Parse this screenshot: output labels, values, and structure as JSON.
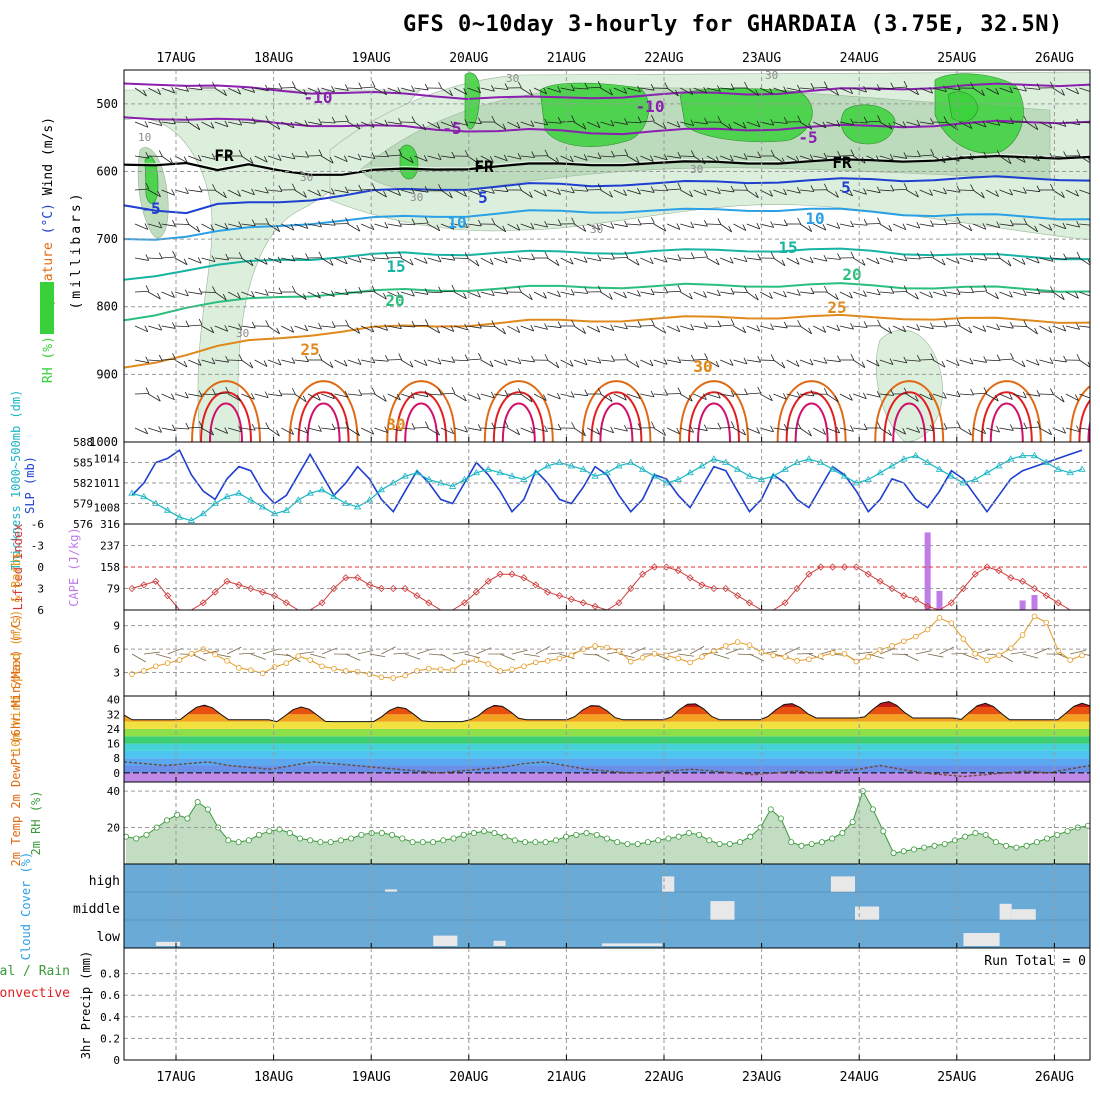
{
  "title": "GFS 0~10day 3-hourly for GHARDAIA (3.75E, 32.5N)",
  "dates": [
    "17AUG",
    "18AUG",
    "19AUG",
    "20AUG",
    "21AUG",
    "22AUG",
    "23AUG",
    "24AUG",
    "25AUG",
    "26AUG"
  ],
  "colors": {
    "purple": "#8a1fb0",
    "blue_dark": "#1e3fd0",
    "blue_mid": "#2aa0e6",
    "teal": "#17b3a3",
    "green_sea": "#2bbf7e",
    "orange": "#e08a1e",
    "orange_dark": "#e06a14",
    "red": "#e02020",
    "magenta": "#d0106a",
    "rh_light": "#dcefdc",
    "rh_mid": "#b8d8b8",
    "rh_green": "#39d13a",
    "cyan": "#1ab6c4",
    "cloud_bg": "#6aaad6",
    "cloud_fill": "#e8e8e8",
    "wind_orange": "#e69a20",
    "rh2m": "#3a9a3a",
    "cape": "#bf7be8",
    "lifted": "#d03a3a",
    "barb": "#7a6a4a"
  },
  "chart_data": [
    {
      "panel": "upper-air",
      "type": "contour",
      "ylabel_parts": [
        "Wind (m/s)",
        "Temperature (°C)",
        "RH (%)"
      ],
      "ylabel_units": "(millibars)",
      "pressure_ticks": [
        "500",
        "600",
        "700",
        "800",
        "900",
        "1000"
      ],
      "ylim": [
        450,
        1000
      ],
      "isotherm_labels": [
        "-10",
        "-10",
        "-5",
        "-5",
        "FR",
        "FR",
        "FR",
        "-5",
        "5",
        "5",
        "10",
        "10",
        "15",
        "15",
        "20",
        "20",
        "25",
        "25",
        "30",
        "30",
        "30"
      ],
      "rh_labels": [
        "10",
        "30",
        "30",
        "30",
        "30",
        "30",
        "30",
        "30"
      ],
      "isotherms": [
        {
          "value": -10,
          "p": [
            470,
            469,
            472,
            475,
            478,
            480,
            482,
            483,
            485,
            487,
            488,
            490,
            490,
            492,
            492,
            490,
            488,
            487,
            486,
            485,
            484,
            483,
            482,
            480,
            478,
            476,
            475,
            474,
            473,
            472,
            471,
            470
          ]
        },
        {
          "value": -5,
          "p": [
            520,
            520,
            522,
            524,
            526,
            528,
            530,
            532,
            534,
            535,
            537,
            538,
            540,
            540,
            541,
            542,
            542,
            541,
            540,
            538,
            537,
            536,
            535,
            534,
            533,
            532,
            531,
            530,
            528,
            527,
            526,
            525
          ]
        },
        {
          "value": 0,
          "p": [
            590,
            588,
            586,
            600,
            592,
            598,
            602,
            604,
            600,
            598,
            596,
            594,
            592,
            591,
            590,
            589,
            588,
            588,
            588,
            587,
            586,
            586,
            586,
            585,
            584,
            583,
            582,
            581,
            580,
            579,
            578,
            577
          ]
        },
        {
          "value": 5,
          "p": [
            650,
            655,
            660,
            650,
            648,
            645,
            640,
            635,
            630,
            628,
            626,
            624,
            622,
            620,
            620,
            620,
            618,
            618,
            617,
            616,
            615,
            614,
            614,
            613,
            612,
            612,
            611,
            611,
            610,
            610,
            610,
            612
          ]
        },
        {
          "value": 10,
          "p": [
            700,
            698,
            695,
            690,
            685,
            680,
            675,
            672,
            670,
            668,
            666,
            664,
            662,
            660,
            660,
            659,
            658,
            658,
            658,
            657,
            656,
            656,
            656,
            658,
            660,
            662,
            664,
            665,
            666,
            667,
            668,
            669
          ]
        },
        {
          "value": 15,
          "p": [
            760,
            752,
            745,
            740,
            735,
            730,
            728,
            726,
            724,
            722,
            722,
            721,
            720,
            720,
            720,
            719,
            719,
            718,
            718,
            717,
            716,
            716,
            716,
            717,
            718,
            720,
            722,
            724,
            725,
            726,
            727,
            728
          ]
        },
        {
          "value": 20,
          "p": [
            820,
            810,
            800,
            795,
            790,
            785,
            782,
            780,
            778,
            776,
            775,
            774,
            773,
            772,
            771,
            770,
            770,
            770,
            769,
            769,
            768,
            768,
            768,
            768,
            769,
            770,
            771,
            772,
            773,
            774,
            775,
            776
          ]
        },
        {
          "value": 25,
          "p": [
            890,
            880,
            870,
            860,
            852,
            846,
            840,
            836,
            832,
            830,
            828,
            826,
            824,
            822,
            821,
            820,
            819,
            818,
            817,
            816,
            815,
            815,
            815,
            815,
            816,
            816,
            817,
            818,
            819,
            820,
            821,
            822
          ]
        }
      ]
    },
    {
      "panel": "sea-level-pressure",
      "type": "line",
      "ylabel_left": "Thickness 1000~500mb (dm)",
      "ylabel_right": "SLP (mb)",
      "left_ticks": [
        "588",
        "585",
        "582",
        "579",
        "576"
      ],
      "right_ticks": [
        "1014",
        "1011",
        "1008"
      ],
      "series": [
        {
          "name": "SLP (mb)",
          "color": "blue_dark",
          "values": [
            1009.5,
            1011,
            1013.5,
            1014,
            1015,
            1012,
            1010,
            1009,
            1011.5,
            1013,
            1012.5,
            1010,
            1008.5,
            1009.5,
            1012,
            1014.5,
            1012,
            1009.5,
            1011,
            1013,
            1011.5,
            1009,
            1007.5,
            1010,
            1012.5,
            1011,
            1009,
            1008.5,
            1011,
            1013.5,
            1012,
            1010,
            1007.5,
            1009,
            1012.5,
            1011,
            1009,
            1008.5,
            1010.5,
            1013,
            1012,
            1009.5,
            1007.5,
            1009,
            1012,
            1011.5,
            1009.5,
            1008,
            1010.5,
            1013,
            1012.5,
            1010,
            1007.5,
            1009,
            1012,
            1011,
            1009,
            1008,
            1010.5,
            1013,
            1012,
            1010,
            1007.5,
            1009,
            1011.5,
            1011,
            1009,
            1008,
            1010,
            1012.5,
            1011.5,
            1009.5,
            1007.5,
            1009.5,
            1011.5,
            1012.5,
            1013,
            1013.5,
            1014,
            1014.5,
            1015
          ]
        },
        {
          "name": "Thickness (dm)",
          "color": "cyan",
          "values": [
            580.5,
            580,
            579,
            578,
            577,
            576.5,
            577.5,
            579,
            580,
            580.5,
            579.5,
            578.5,
            577.5,
            578,
            579.5,
            580.5,
            581,
            580,
            579,
            578.5,
            579.5,
            581,
            582,
            583,
            583.5,
            582.5,
            582,
            581.5,
            582.5,
            583.5,
            584,
            583.5,
            583,
            582.5,
            583.5,
            584.5,
            585,
            584.5,
            584,
            583,
            583.5,
            584.5,
            585,
            584,
            583,
            582,
            582.5,
            583.5,
            584.5,
            585.5,
            585,
            584,
            583,
            582.5,
            583,
            584,
            585,
            585.5,
            585,
            584,
            583,
            582,
            582.5,
            583.5,
            584.5,
            585.5,
            586,
            585,
            584,
            583,
            582,
            582.5,
            583.5,
            584.5,
            585.5,
            586,
            586,
            585,
            584,
            583.5,
            584
          ]
        }
      ]
    },
    {
      "panel": "stability",
      "type": "line+bar",
      "ylabel_left": "Lifted Index",
      "ylabel_right": "CAPE (J/kg)",
      "left_ticks": [
        "-6",
        "-3",
        "0",
        "3",
        "6"
      ],
      "right_ticks": [
        "316",
        "237",
        "158",
        "79"
      ],
      "lifted_index": [
        3,
        2.5,
        2,
        4,
        6,
        6,
        5,
        3.5,
        2,
        2.5,
        3,
        3.5,
        4,
        5,
        6,
        6,
        5,
        3,
        1.5,
        1.5,
        2.5,
        3,
        3,
        3,
        4,
        5,
        6,
        6,
        5,
        3.5,
        2,
        1,
        1,
        1.5,
        2.5,
        3.5,
        4,
        4.5,
        5,
        5.5,
        6,
        5,
        3,
        1,
        0,
        0,
        0.5,
        1.5,
        2.5,
        3,
        3,
        4,
        5,
        6,
        6,
        5,
        3,
        1,
        0,
        0,
        0,
        0,
        1,
        2,
        3,
        4,
        4.5,
        5.5,
        6,
        5,
        3,
        1,
        0,
        0.5,
        1.5,
        2,
        3,
        4,
        5,
        6,
        6
      ],
      "cape": [
        0,
        0,
        0,
        0,
        0,
        0,
        0,
        0,
        0,
        0,
        0,
        0,
        0,
        0,
        0,
        0,
        0,
        0,
        0,
        0,
        0,
        0,
        0,
        0,
        0,
        0,
        0,
        0,
        0,
        0,
        0,
        0,
        0,
        0,
        0,
        0,
        0,
        0,
        0,
        0,
        0,
        0,
        0,
        0,
        0,
        0,
        0,
        0,
        0,
        0,
        0,
        0,
        0,
        0,
        0,
        0,
        0,
        0,
        0,
        0,
        0,
        0,
        0,
        0,
        0,
        0,
        0,
        285,
        70,
        0,
        0,
        0,
        0,
        0,
        0,
        35,
        55,
        0,
        0,
        0,
        0
      ]
    },
    {
      "panel": "surface-wind",
      "type": "line",
      "ylabel": "10m Wind Speed (m/s) & Barbs",
      "ticks": [
        "9",
        "6",
        "3"
      ],
      "ylim": [
        0,
        11
      ],
      "values": [
        2.8,
        3.2,
        3.8,
        4.2,
        4.6,
        5.4,
        6.0,
        5.3,
        4.5,
        3.6,
        3.3,
        2.9,
        3.7,
        4.2,
        5.1,
        4.6,
        3.8,
        3.5,
        3.2,
        3.1,
        2.8,
        2.4,
        2.3,
        2.6,
        3.2,
        3.5,
        3.4,
        3.3,
        4.3,
        4.6,
        4.1,
        3.2,
        3.4,
        3.8,
        4.3,
        4.5,
        4.8,
        5.2,
        6.0,
        6.4,
        6.2,
        5.8,
        4.4,
        4.9,
        5.4,
        5.2,
        4.8,
        4.3,
        5.0,
        5.8,
        6.4,
        6.9,
        6.5,
        5.6,
        5.2,
        5.0,
        4.5,
        4.7,
        5.1,
        5.5,
        5.4,
        4.4,
        5.0,
        5.9,
        6.4,
        7.0,
        7.6,
        8.5,
        10.0,
        9.3,
        7.3,
        5.4,
        4.6,
        5.2,
        6.1,
        7.8,
        10.2,
        9.4,
        5.8,
        4.6,
        5.2
      ]
    },
    {
      "panel": "surface-temperature",
      "type": "area",
      "ylabel": "2m Temp 2m DewPt (6hr Min/Max) (°C)",
      "ticks": [
        "40",
        "32",
        "24",
        "16",
        "8",
        "0"
      ],
      "ylim": [
        -5,
        42
      ],
      "temperature_max": [
        37,
        37,
        36,
        36,
        37,
        37,
        38,
        38,
        39,
        38,
        38,
        39,
        39,
        38,
        37,
        38
      ],
      "temperature_min": [
        29,
        29,
        28,
        28,
        29,
        29,
        29,
        30,
        30,
        29,
        29,
        30,
        30,
        30,
        29,
        30
      ],
      "dewpoint": [
        6,
        5,
        4,
        5,
        6,
        4,
        3,
        2,
        4,
        6,
        5,
        4,
        3,
        2,
        1,
        0,
        1,
        2,
        3,
        5,
        6,
        4,
        2,
        1,
        0,
        0,
        1,
        2,
        1,
        0,
        -1,
        0,
        1,
        0,
        1,
        2,
        4,
        2,
        0,
        -1,
        -2,
        -1,
        0,
        1,
        0,
        2,
        4
      ]
    },
    {
      "panel": "relative-humidity",
      "type": "area+line",
      "ylabel": "2m RH (%)",
      "ticks": [
        "40",
        "20"
      ],
      "ylim": [
        0,
        45
      ],
      "values": [
        15,
        14,
        16,
        20,
        24,
        27,
        25,
        34,
        30,
        20,
        13,
        12,
        13,
        16,
        18,
        19,
        17,
        14,
        13,
        12,
        12,
        13,
        14,
        16,
        17,
        17,
        16,
        14,
        12,
        12,
        12,
        13,
        14,
        16,
        17,
        18,
        17,
        15,
        13,
        12,
        12,
        12,
        13,
        15,
        16,
        17,
        16,
        14,
        12,
        11,
        11,
        12,
        13,
        14,
        15,
        17,
        16,
        13,
        11,
        11,
        12,
        15,
        20,
        30,
        25,
        12,
        10,
        11,
        12,
        14,
        17,
        23,
        40,
        30,
        18,
        6,
        7,
        8,
        9,
        10,
        11,
        13,
        15,
        17,
        16,
        12,
        10,
        9,
        10,
        12,
        14,
        16,
        18,
        20,
        21
      ]
    },
    {
      "panel": "cloud-cover",
      "type": "area",
      "ylabel": "Cloud Cover (%)",
      "levels": [
        "high",
        "middle",
        "low"
      ],
      "ylim": [
        0,
        100
      ],
      "segments": [
        {
          "start": 2,
          "end": 4,
          "level": "low",
          "value": 8
        },
        {
          "start": 21,
          "end": 22,
          "level": "high",
          "value": 5
        },
        {
          "start": 25,
          "end": 27,
          "level": "low",
          "value": 20
        },
        {
          "start": 30,
          "end": 31,
          "level": "low",
          "value": 10
        },
        {
          "start": 39,
          "end": 44,
          "level": "low",
          "value": 5
        },
        {
          "start": 44,
          "end": 45,
          "level": "high",
          "value": 30
        },
        {
          "start": 48,
          "end": 50,
          "level": "middle",
          "value": 35
        },
        {
          "start": 58,
          "end": 60,
          "level": "high",
          "value": 30
        },
        {
          "start": 60,
          "end": 62,
          "level": "middle",
          "value": 25
        },
        {
          "start": 69,
          "end": 72,
          "level": "low",
          "value": 25
        },
        {
          "start": 72,
          "end": 73,
          "level": "middle",
          "value": 30
        },
        {
          "start": 73,
          "end": 75,
          "level": "middle",
          "value": 20
        }
      ]
    },
    {
      "panel": "precipitation",
      "type": "bar",
      "ylabel_total": "Total / Rain",
      "ylabel_convective": "Convective",
      "ylabel": "3hr Precip (mm)",
      "run_total": "Run Total = 0",
      "ticks": [
        "0.8",
        "0.6",
        "0.4",
        "0.2",
        "0"
      ],
      "ylim": [
        0,
        1.0
      ],
      "values": []
    }
  ]
}
